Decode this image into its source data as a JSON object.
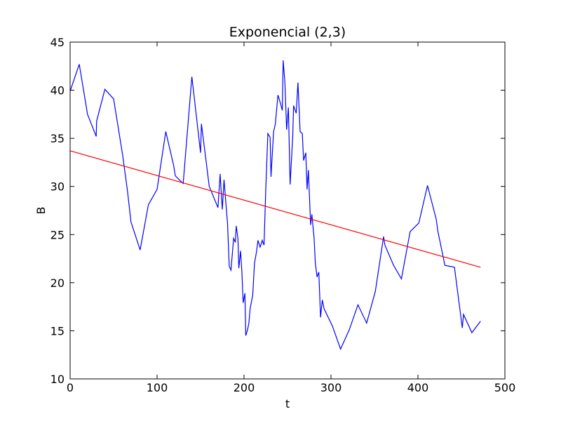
{
  "chart_data": {
    "type": "line",
    "title": "Exponencial (2,3)",
    "x_label": "t",
    "y_label": "B",
    "xlim": [
      0,
      500
    ],
    "xticks": [
      0,
      100,
      200,
      300,
      400,
      500
    ],
    "ylim": [
      10,
      45
    ],
    "yticks": [
      10,
      15,
      20,
      25,
      30,
      35,
      40,
      45
    ],
    "series": [
      {
        "color": "#0000ff",
        "x": [
          0,
          10.5,
          20,
          30,
          30.5,
          40,
          50,
          60.5,
          66,
          70,
          80.5,
          90,
          100,
          110,
          119,
          121,
          130,
          140,
          150,
          151,
          160,
          170,
          172.5,
          175,
          177,
          179,
          181,
          183,
          185,
          188,
          190,
          191,
          193,
          194,
          196,
          197.6,
          199,
          201,
          202,
          204,
          205.6,
          207,
          210,
          212,
          214.5,
          216,
          218.5,
          221,
          223,
          225,
          227.4,
          230,
          231,
          234,
          236,
          239,
          242,
          244,
          245,
          247,
          249,
          251,
          253,
          256,
          257,
          260,
          262,
          264.5,
          267,
          268.5,
          271,
          272.5,
          274,
          276.6,
          278,
          280.6,
          282,
          284,
          286,
          288,
          290,
          292,
          301.6,
          311,
          321,
          331,
          341,
          351,
          360.5,
          362,
          372,
          381,
          391,
          401,
          411,
          421,
          423,
          431,
          442,
          451,
          452.4,
          462,
          472
        ],
        "values": [
          39.9,
          42.7,
          37.5,
          35.2,
          36.8,
          40.1,
          39.1,
          33.2,
          29.5,
          26.3,
          23.4,
          28.1,
          29.7,
          35.7,
          32.2,
          31.1,
          30.3,
          41.4,
          33.5,
          36.5,
          30.0,
          27.8,
          31.3,
          27.6,
          30.7,
          28.4,
          26.2,
          21.7,
          21.3,
          24.6,
          24.2,
          25.9,
          24.6,
          21.5,
          23.3,
          21.0,
          17.9,
          18.9,
          14.5,
          15.1,
          15.8,
          17.3,
          18.7,
          22.0,
          23.3,
          24.4,
          23.7,
          24.4,
          23.9,
          29.7,
          35.5,
          35.1,
          31.0,
          35.7,
          36.5,
          39.5,
          38.6,
          37.9,
          43.1,
          40.8,
          35.9,
          38.2,
          30.2,
          35.2,
          38.4,
          37.6,
          40.8,
          35.7,
          35.5,
          32.7,
          33.5,
          29.7,
          31.7,
          26.0,
          27.1,
          24.6,
          22.0,
          20.6,
          21.1,
          16.4,
          18.2,
          17.3,
          15.5,
          13.1,
          15.1,
          17.7,
          15.8,
          19.1,
          24.8,
          23.9,
          21.8,
          20.4,
          25.3,
          26.2,
          30.1,
          26.6,
          25.3,
          21.8,
          21.6,
          15.3,
          16.7,
          14.8,
          16.0
        ]
      },
      {
        "color": "#ff0000",
        "x": [
          0,
          472
        ],
        "values": [
          33.7,
          21.6
        ]
      }
    ]
  }
}
